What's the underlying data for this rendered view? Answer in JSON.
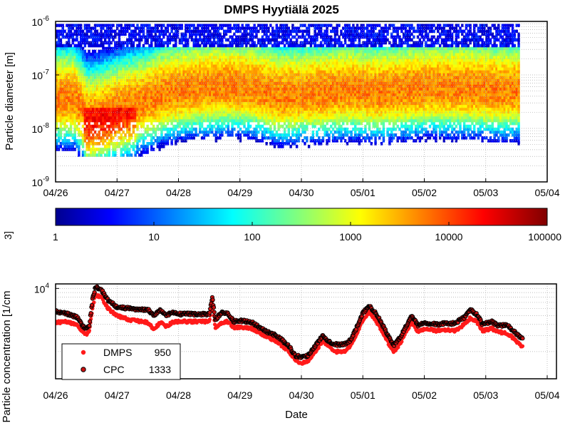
{
  "chart_data": [
    {
      "type": "heatmap",
      "title": "DMPS Hyytiälä 2025",
      "ylabel": "Particle diameter [m]",
      "yscale": "log",
      "ylim": [
        1e-09,
        1e-06
      ],
      "y_ticks": [
        {
          "base": "10",
          "exp": "-9",
          "value": 1e-09
        },
        {
          "base": "10",
          "exp": "-8",
          "value": 1e-08
        },
        {
          "base": "10",
          "exp": "-7",
          "value": 1e-07
        },
        {
          "base": "10",
          "exp": "-6",
          "value": 1e-06
        }
      ],
      "x_ticks": [
        "04/26",
        "04/27",
        "04/28",
        "04/29",
        "04/30",
        "05/01",
        "05/02",
        "05/03",
        "05/04"
      ],
      "xlim_days": [
        0,
        8
      ],
      "data_end_day": 7.55,
      "colormap": "jet",
      "colorbar": {
        "scale": "log",
        "range": [
          1,
          100000
        ],
        "ticks": [
          "1",
          "10",
          "100",
          "1000",
          "10000",
          "100000"
        ],
        "label": "3]"
      },
      "mode_diameter": [
        [
          0.3,
          3.5e-08
        ],
        [
          0.5,
          1.5e-08
        ],
        [
          0.7,
          1.7e-08
        ],
        [
          1.0,
          2.2e-08
        ],
        [
          1.4,
          3e-08
        ],
        [
          1.8,
          4.5e-08
        ],
        [
          2.3,
          5.5e-08
        ],
        [
          2.8,
          6e-08
        ],
        [
          3.2,
          5.5e-08
        ],
        [
          3.6,
          4e-08
        ],
        [
          4.2,
          4.5e-08
        ],
        [
          4.8,
          5e-08
        ],
        [
          5.2,
          4.5e-08
        ],
        [
          5.6,
          5e-08
        ],
        [
          6.0,
          5.5e-08
        ],
        [
          6.6,
          5.5e-08
        ],
        [
          7.2,
          5e-08
        ]
      ],
      "grid": "dotted",
      "legend": "none"
    },
    {
      "type": "scatter",
      "ylabel": "Particle concentration [1/cm",
      "xlabel": "Date",
      "yscale": "log",
      "ylim": [
        1000,
        10000
      ],
      "y_ticks": [
        {
          "base": "10",
          "exp": "4",
          "value": 10000
        }
      ],
      "x_ticks": [
        "04/26",
        "04/27",
        "04/28",
        "04/29",
        "04/30",
        "05/01",
        "05/02",
        "05/03",
        "05/04"
      ],
      "xlim_days": [
        0,
        8
      ],
      "grid": "dotted",
      "legend_position": "bottom-left",
      "series": [
        {
          "name": "DMPS",
          "legend_value": "950",
          "color": "#ff1a1a",
          "edge": "#ff1a1a",
          "points": [
            [
              0.0,
              4200
            ],
            [
              0.2,
              4300
            ],
            [
              0.35,
              3900
            ],
            [
              0.45,
              3300
            ],
            [
              0.5,
              3100
            ],
            [
              0.55,
              3400
            ],
            [
              0.6,
              6000
            ],
            [
              0.65,
              8500
            ],
            [
              0.75,
              8000
            ],
            [
              0.85,
              6000
            ],
            [
              1.0,
              5000
            ],
            [
              1.2,
              4500
            ],
            [
              1.4,
              4300
            ],
            [
              1.5,
              4200
            ],
            [
              1.6,
              3500
            ],
            [
              1.7,
              4200
            ],
            [
              1.8,
              3800
            ],
            [
              1.9,
              4200
            ],
            [
              2.0,
              4300
            ],
            [
              2.3,
              4300
            ],
            [
              2.5,
              4300
            ],
            [
              2.55,
              7000
            ],
            [
              2.6,
              3600
            ],
            [
              2.7,
              4200
            ],
            [
              2.8,
              4300
            ],
            [
              2.9,
              3700
            ],
            [
              3.0,
              3700
            ],
            [
              3.2,
              3600
            ],
            [
              3.4,
              3000
            ],
            [
              3.6,
              2600
            ],
            [
              3.8,
              2000
            ],
            [
              3.9,
              1600
            ],
            [
              4.0,
              1500
            ],
            [
              4.1,
              1550
            ],
            [
              4.2,
              1900
            ],
            [
              4.35,
              2600
            ],
            [
              4.45,
              2300
            ],
            [
              4.55,
              2000
            ],
            [
              4.7,
              2000
            ],
            [
              4.8,
              2300
            ],
            [
              4.9,
              3100
            ],
            [
              5.0,
              4500
            ],
            [
              5.1,
              5500
            ],
            [
              5.2,
              4500
            ],
            [
              5.3,
              3500
            ],
            [
              5.4,
              2600
            ],
            [
              5.5,
              1950
            ],
            [
              5.6,
              2400
            ],
            [
              5.7,
              3300
            ],
            [
              5.8,
              4200
            ],
            [
              5.9,
              3300
            ],
            [
              6.0,
              3600
            ],
            [
              6.2,
              3400
            ],
            [
              6.35,
              3500
            ],
            [
              6.5,
              3400
            ],
            [
              6.65,
              4000
            ],
            [
              6.75,
              4700
            ],
            [
              6.85,
              4300
            ],
            [
              6.95,
              3400
            ],
            [
              7.1,
              3600
            ],
            [
              7.2,
              3300
            ],
            [
              7.35,
              3200
            ],
            [
              7.45,
              2800
            ],
            [
              7.55,
              2400
            ],
            [
              7.6,
              2300
            ]
          ]
        },
        {
          "name": "CPC",
          "legend_value": "1333",
          "color": "#cc1111",
          "edge": "#000000",
          "points": [
            [
              0.0,
              5600
            ],
            [
              0.2,
              5200
            ],
            [
              0.35,
              4800
            ],
            [
              0.45,
              3800
            ],
            [
              0.5,
              3600
            ],
            [
              0.55,
              4000
            ],
            [
              0.6,
              7500
            ],
            [
              0.65,
              10500
            ],
            [
              0.75,
              9500
            ],
            [
              0.85,
              7500
            ],
            [
              1.0,
              6200
            ],
            [
              1.2,
              6000
            ],
            [
              1.4,
              5800
            ],
            [
              1.5,
              5900
            ],
            [
              1.6,
              5000
            ],
            [
              1.7,
              5800
            ],
            [
              1.8,
              5000
            ],
            [
              1.9,
              5400
            ],
            [
              2.0,
              5200
            ],
            [
              2.3,
              5200
            ],
            [
              2.5,
              5200
            ],
            [
              2.55,
              8000
            ],
            [
              2.6,
              4500
            ],
            [
              2.7,
              5400
            ],
            [
              2.8,
              5300
            ],
            [
              2.9,
              4300
            ],
            [
              3.0,
              4400
            ],
            [
              3.2,
              4200
            ],
            [
              3.4,
              3400
            ],
            [
              3.6,
              3000
            ],
            [
              3.8,
              2300
            ],
            [
              3.9,
              1800
            ],
            [
              4.0,
              1750
            ],
            [
              4.1,
              1800
            ],
            [
              4.2,
              2200
            ],
            [
              4.35,
              3000
            ],
            [
              4.45,
              2600
            ],
            [
              4.55,
              2400
            ],
            [
              4.7,
              2400
            ],
            [
              4.8,
              2700
            ],
            [
              4.9,
              3700
            ],
            [
              5.0,
              5300
            ],
            [
              5.1,
              6500
            ],
            [
              5.2,
              5400
            ],
            [
              5.3,
              4200
            ],
            [
              5.4,
              3100
            ],
            [
              5.5,
              2350
            ],
            [
              5.6,
              2800
            ],
            [
              5.7,
              3800
            ],
            [
              5.8,
              5000
            ],
            [
              5.9,
              3900
            ],
            [
              6.0,
              4200
            ],
            [
              6.2,
              4000
            ],
            [
              6.35,
              4100
            ],
            [
              6.5,
              4100
            ],
            [
              6.65,
              4800
            ],
            [
              6.75,
              5800
            ],
            [
              6.85,
              5200
            ],
            [
              6.95,
              4000
            ],
            [
              7.1,
              4300
            ],
            [
              7.2,
              3900
            ],
            [
              7.35,
              3900
            ],
            [
              7.45,
              3400
            ],
            [
              7.55,
              2900
            ],
            [
              7.6,
              2800
            ]
          ]
        }
      ]
    }
  ]
}
